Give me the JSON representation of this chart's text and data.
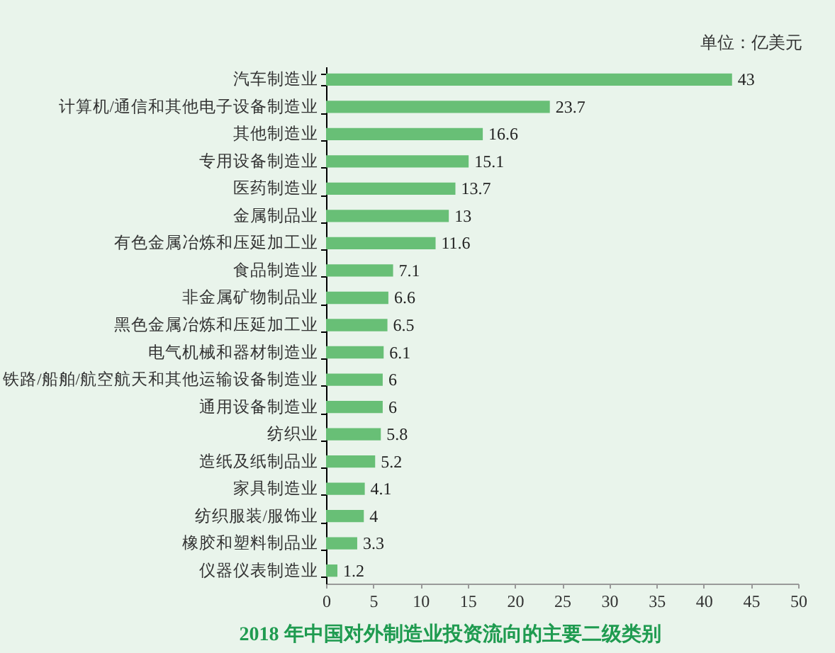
{
  "chart_data": {
    "type": "bar",
    "orientation": "horizontal",
    "title": "2018 年中国对外制造业投资流向的主要二级类别",
    "annotations": [
      "单位：亿美元"
    ],
    "categories": [
      "汽车制造业",
      "计算机/通信和其他电子设备制造业",
      "其他制造业",
      "专用设备制造业",
      "医药制造业",
      "金属制品业",
      "有色金属冶炼和压延加工业",
      "食品制造业",
      "非金属矿物制品业",
      "黑色金属冶炼和压延加工业",
      "电气机械和器材制造业",
      "铁路/船舶/航空航天和其他运输设备制造业",
      "通用设备制造业",
      "纺织业",
      "造纸及纸制品业",
      "家具制造业",
      "纺织服装/服饰业",
      "橡胶和塑料制品业",
      "仪器仪表制造业"
    ],
    "values": [
      43,
      23.7,
      16.6,
      15.1,
      13.7,
      13,
      11.6,
      7.1,
      6.6,
      6.5,
      6.1,
      6,
      6,
      5.8,
      5.2,
      4.1,
      4,
      3.3,
      1.2
    ],
    "color": "#68bf76",
    "data_labels": true,
    "grid": false,
    "xlim": [
      0,
      50
    ],
    "xticks": [
      0,
      5,
      10,
      15,
      20,
      25,
      30,
      35,
      40,
      45,
      50
    ]
  }
}
